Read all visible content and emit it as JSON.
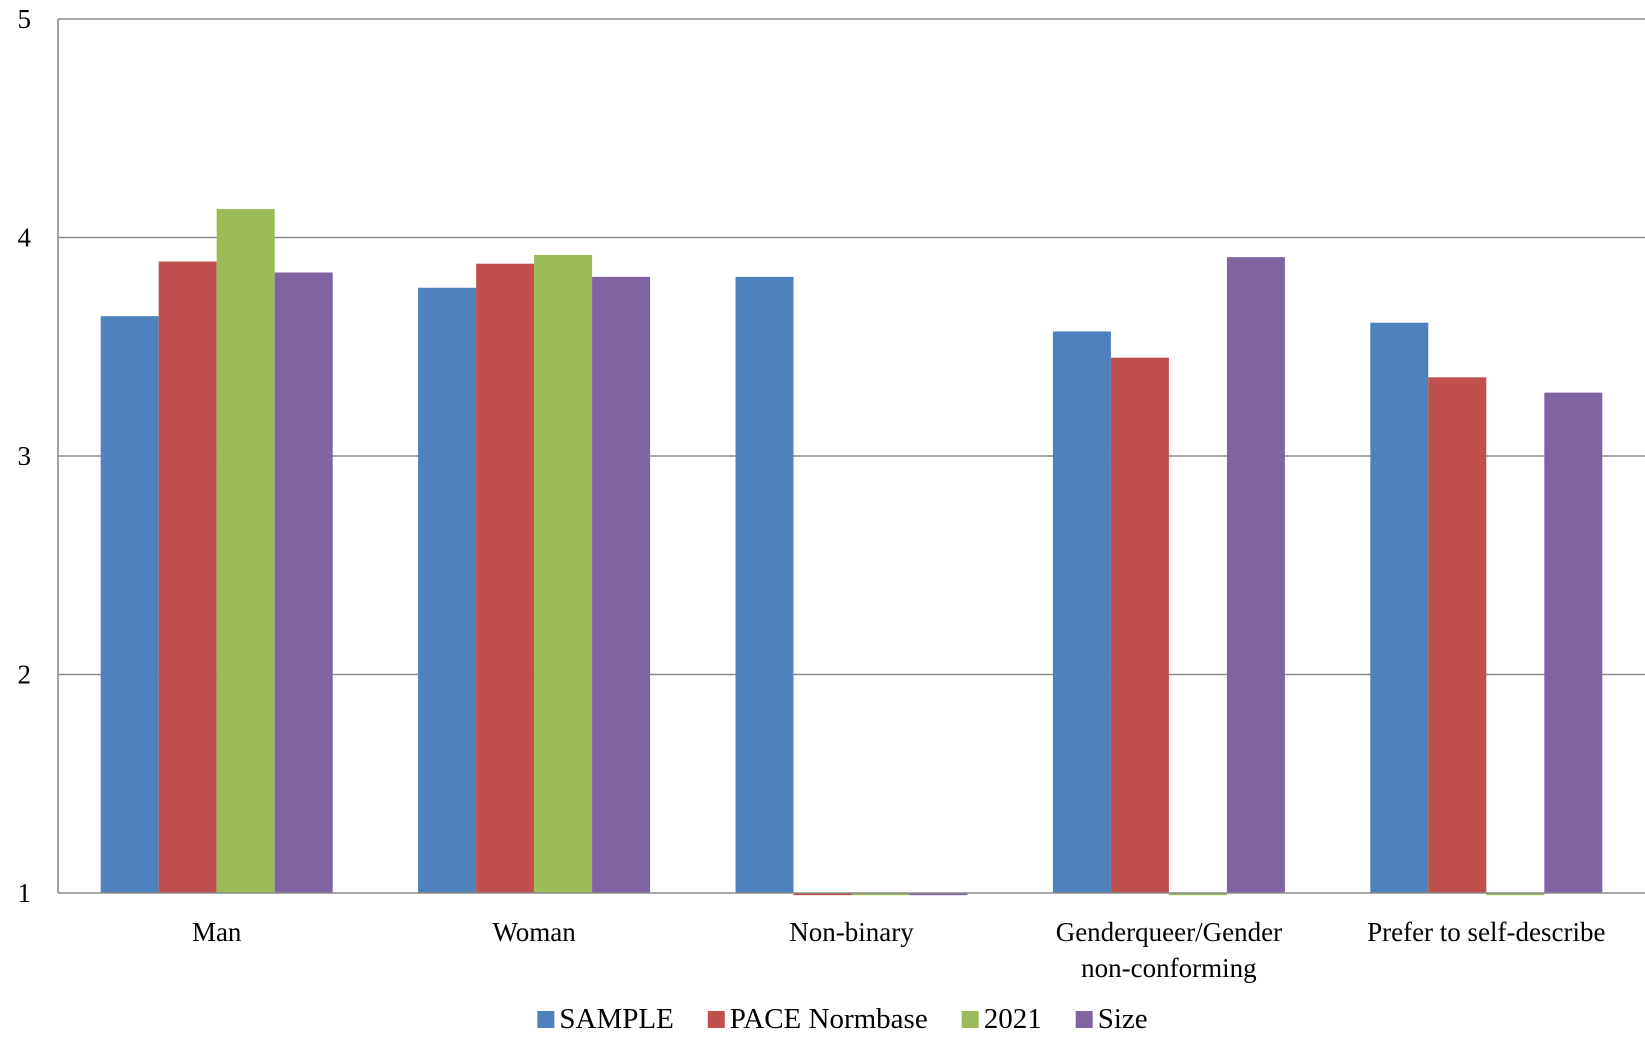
{
  "chart_data": {
    "type": "bar",
    "title": "",
    "xlabel": "",
    "ylabel": "",
    "ylim": [
      1,
      5
    ],
    "yticks": [
      1,
      2,
      3,
      4,
      5
    ],
    "grid": true,
    "legend_position": "bottom",
    "categories": [
      [
        "Man"
      ],
      [
        "Woman"
      ],
      [
        "Non-binary"
      ],
      [
        "Genderqueer/Gender",
        "non-conforming"
      ],
      [
        "Prefer to self-describe"
      ]
    ],
    "series": [
      {
        "name": "SAMPLE",
        "color": "#4F81BD",
        "values": [
          3.64,
          3.77,
          3.82,
          3.57,
          3.61
        ]
      },
      {
        "name": "PACE Normbase",
        "color": "#C0504D",
        "values": [
          3.89,
          3.88,
          0.99,
          3.45,
          3.36
        ]
      },
      {
        "name": "2021",
        "color": "#9BBB59",
        "values": [
          4.13,
          3.92,
          0.99,
          0.99,
          0.99
        ]
      },
      {
        "name": "Size",
        "color": "#8064A2",
        "values": [
          3.84,
          3.82,
          0.99,
          3.91,
          3.29
        ]
      }
    ]
  }
}
